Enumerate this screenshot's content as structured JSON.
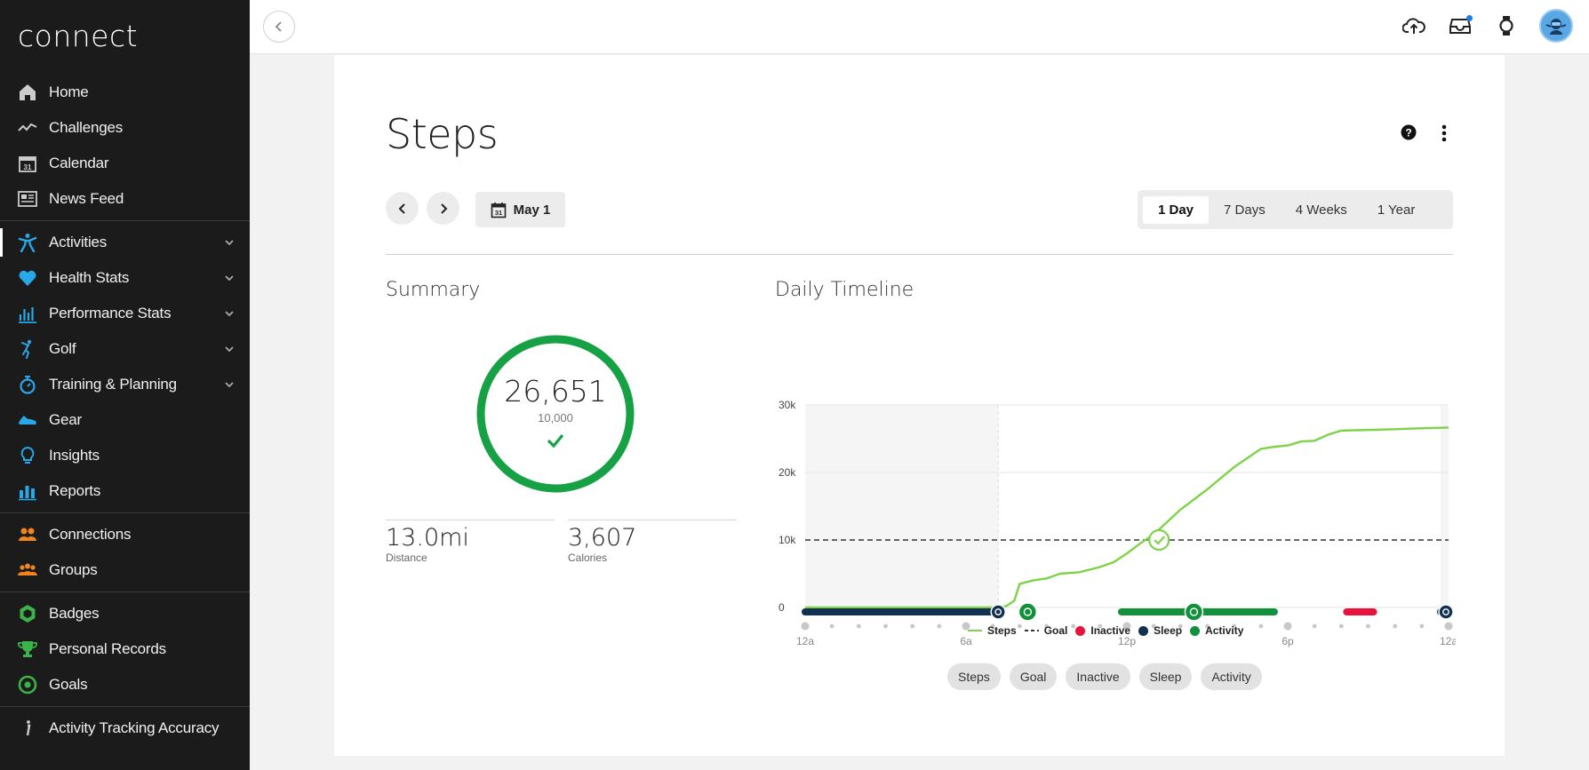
{
  "app": {
    "brand": "connect"
  },
  "sidebar": {
    "items": [
      {
        "label": "Home",
        "icon": "home-icon",
        "group": 1
      },
      {
        "label": "Challenges",
        "icon": "challenges-icon",
        "group": 1
      },
      {
        "label": "Calendar",
        "icon": "calendar-icon",
        "group": 1
      },
      {
        "label": "News Feed",
        "icon": "news-feed-icon",
        "group": 1
      },
      {
        "label": "Activities",
        "icon": "activities-icon",
        "group": 2,
        "expandable": true,
        "active": true
      },
      {
        "label": "Health Stats",
        "icon": "heart-icon",
        "group": 2,
        "expandable": true
      },
      {
        "label": "Performance Stats",
        "icon": "performance-icon",
        "group": 2,
        "expandable": true
      },
      {
        "label": "Golf",
        "icon": "golf-icon",
        "group": 2,
        "expandable": true
      },
      {
        "label": "Training & Planning",
        "icon": "stopwatch-icon",
        "group": 2,
        "expandable": true
      },
      {
        "label": "Gear",
        "icon": "shoe-icon",
        "group": 2
      },
      {
        "label": "Insights",
        "icon": "lightbulb-icon",
        "group": 2
      },
      {
        "label": "Reports",
        "icon": "reports-icon",
        "group": 2
      },
      {
        "label": "Connections",
        "icon": "connections-icon",
        "group": 3
      },
      {
        "label": "Groups",
        "icon": "groups-icon",
        "group": 3
      },
      {
        "label": "Badges",
        "icon": "badge-icon",
        "group": 4
      },
      {
        "label": "Personal Records",
        "icon": "trophy-icon",
        "group": 4
      },
      {
        "label": "Goals",
        "icon": "target-icon",
        "group": 4
      },
      {
        "label": "Activity Tracking Accuracy",
        "icon": "info-icon",
        "group": 5
      }
    ]
  },
  "page": {
    "title": "Steps",
    "date_label": "May 1",
    "ranges": [
      "1 Day",
      "7 Days",
      "4 Weeks",
      "1 Year"
    ],
    "selected_range": "1 Day"
  },
  "summary": {
    "title": "Summary",
    "steps": "26,651",
    "goal": "10,000",
    "progress": 1.0,
    "distance_value": "13.0mi",
    "distance_label": "Distance",
    "calories_value": "3,607",
    "calories_label": "Calories"
  },
  "timeline": {
    "title": "Daily Timeline",
    "legend": [
      {
        "label": "Steps",
        "kind": "line",
        "color": "#7ed348"
      },
      {
        "label": "Goal",
        "kind": "dashed",
        "color": "#333333"
      },
      {
        "label": "Inactive",
        "kind": "dot",
        "color": "#e8123c"
      },
      {
        "label": "Sleep",
        "kind": "dot",
        "color": "#12304f"
      },
      {
        "label": "Activity",
        "kind": "dot",
        "color": "#11913c"
      }
    ],
    "filters": [
      "Steps",
      "Goal",
      "Inactive",
      "Sleep",
      "Activity"
    ]
  },
  "colors": {
    "ring": "#16a244",
    "steps_line": "#7ed348",
    "sleep": "#12304f",
    "activity": "#11913c",
    "inactive": "#e8123c"
  },
  "chart_data": {
    "type": "line",
    "title": "Daily Timeline",
    "x_unit": "hour",
    "x_ticks": [
      0,
      6,
      12,
      18,
      24
    ],
    "x_tick_labels": [
      "12a",
      "6a",
      "12p",
      "6p",
      "12a"
    ],
    "y_ticks": [
      0,
      10000,
      20000,
      30000
    ],
    "y_tick_labels": [
      "0",
      "10k",
      "20k",
      "30k"
    ],
    "ylim": [
      0,
      30000
    ],
    "xlim": [
      0,
      24
    ],
    "series": [
      {
        "name": "Steps",
        "x": [
          0,
          3.5,
          7.2,
          7.5,
          7.8,
          8.0,
          8.5,
          9.0,
          9.5,
          10.2,
          11.0,
          11.5,
          12.0,
          12.5,
          13.0,
          14.0,
          15.0,
          16.0,
          17.0,
          17.5,
          18.0,
          18.5,
          19.0,
          19.5,
          20.0,
          21.0,
          22.0,
          23.0,
          24.0
        ],
        "y": [
          0,
          0,
          0,
          200,
          1000,
          3500,
          4000,
          4300,
          5000,
          5200,
          6000,
          6700,
          8000,
          9500,
          10800,
          14500,
          17500,
          20800,
          23500,
          23800,
          24000,
          24600,
          24700,
          25600,
          26200,
          26300,
          26400,
          26550,
          26651
        ]
      }
    ],
    "goal": 10000,
    "sleep_segments": [
      [
        0,
        7.2
      ],
      [
        23.7,
        24
      ]
    ],
    "activity_segments": [
      [
        11.8,
        17.5
      ]
    ],
    "inactive_segments": [
      [
        20.2,
        21.2
      ]
    ],
    "event_markers": [
      {
        "x": 7.2,
        "type": "sleep-end"
      },
      {
        "x": 8.3,
        "type": "activity"
      },
      {
        "x": 14.5,
        "type": "activity"
      },
      {
        "x": 23.9,
        "type": "sleep"
      }
    ],
    "goal_reached_at": 13.2
  }
}
